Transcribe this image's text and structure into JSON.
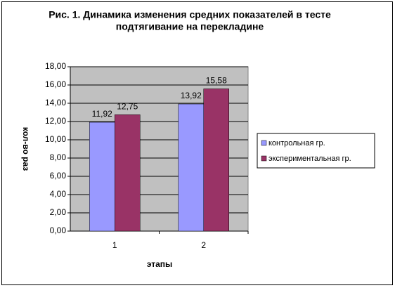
{
  "chart_data": {
    "type": "bar",
    "title": [
      "Рис. 1. Динамика изменения средних показателей в тесте",
      "подтягивание на перекладине"
    ],
    "x_label": "этапы",
    "y_label": "кол-во раз",
    "categories": [
      "1",
      "2"
    ],
    "series": [
      {
        "name": "контрольная гр.",
        "color": "#9999ff",
        "values": [
          11.92,
          13.92
        ],
        "value_labels": [
          "11,92",
          "13,92"
        ]
      },
      {
        "name": "экспериментальная  гр.",
        "color": "#993366",
        "values": [
          12.75,
          15.58
        ],
        "value_labels": [
          "12,75",
          "15,58"
        ]
      }
    ],
    "ylim": [
      0,
      18
    ],
    "yticks": [
      {
        "value": 0,
        "label": "0,00"
      },
      {
        "value": 2,
        "label": "2,00"
      },
      {
        "value": 4,
        "label": "4,00"
      },
      {
        "value": 6,
        "label": "6,00"
      },
      {
        "value": 8,
        "label": "8,00"
      },
      {
        "value": 10,
        "label": "10,00"
      },
      {
        "value": 12,
        "label": "12,00"
      },
      {
        "value": 14,
        "label": "14,00"
      },
      {
        "value": 16,
        "label": "16,00"
      },
      {
        "value": 18,
        "label": "18,00"
      }
    ],
    "grid": true,
    "plot_background": "#c0c0c0",
    "legend_position": "right"
  }
}
